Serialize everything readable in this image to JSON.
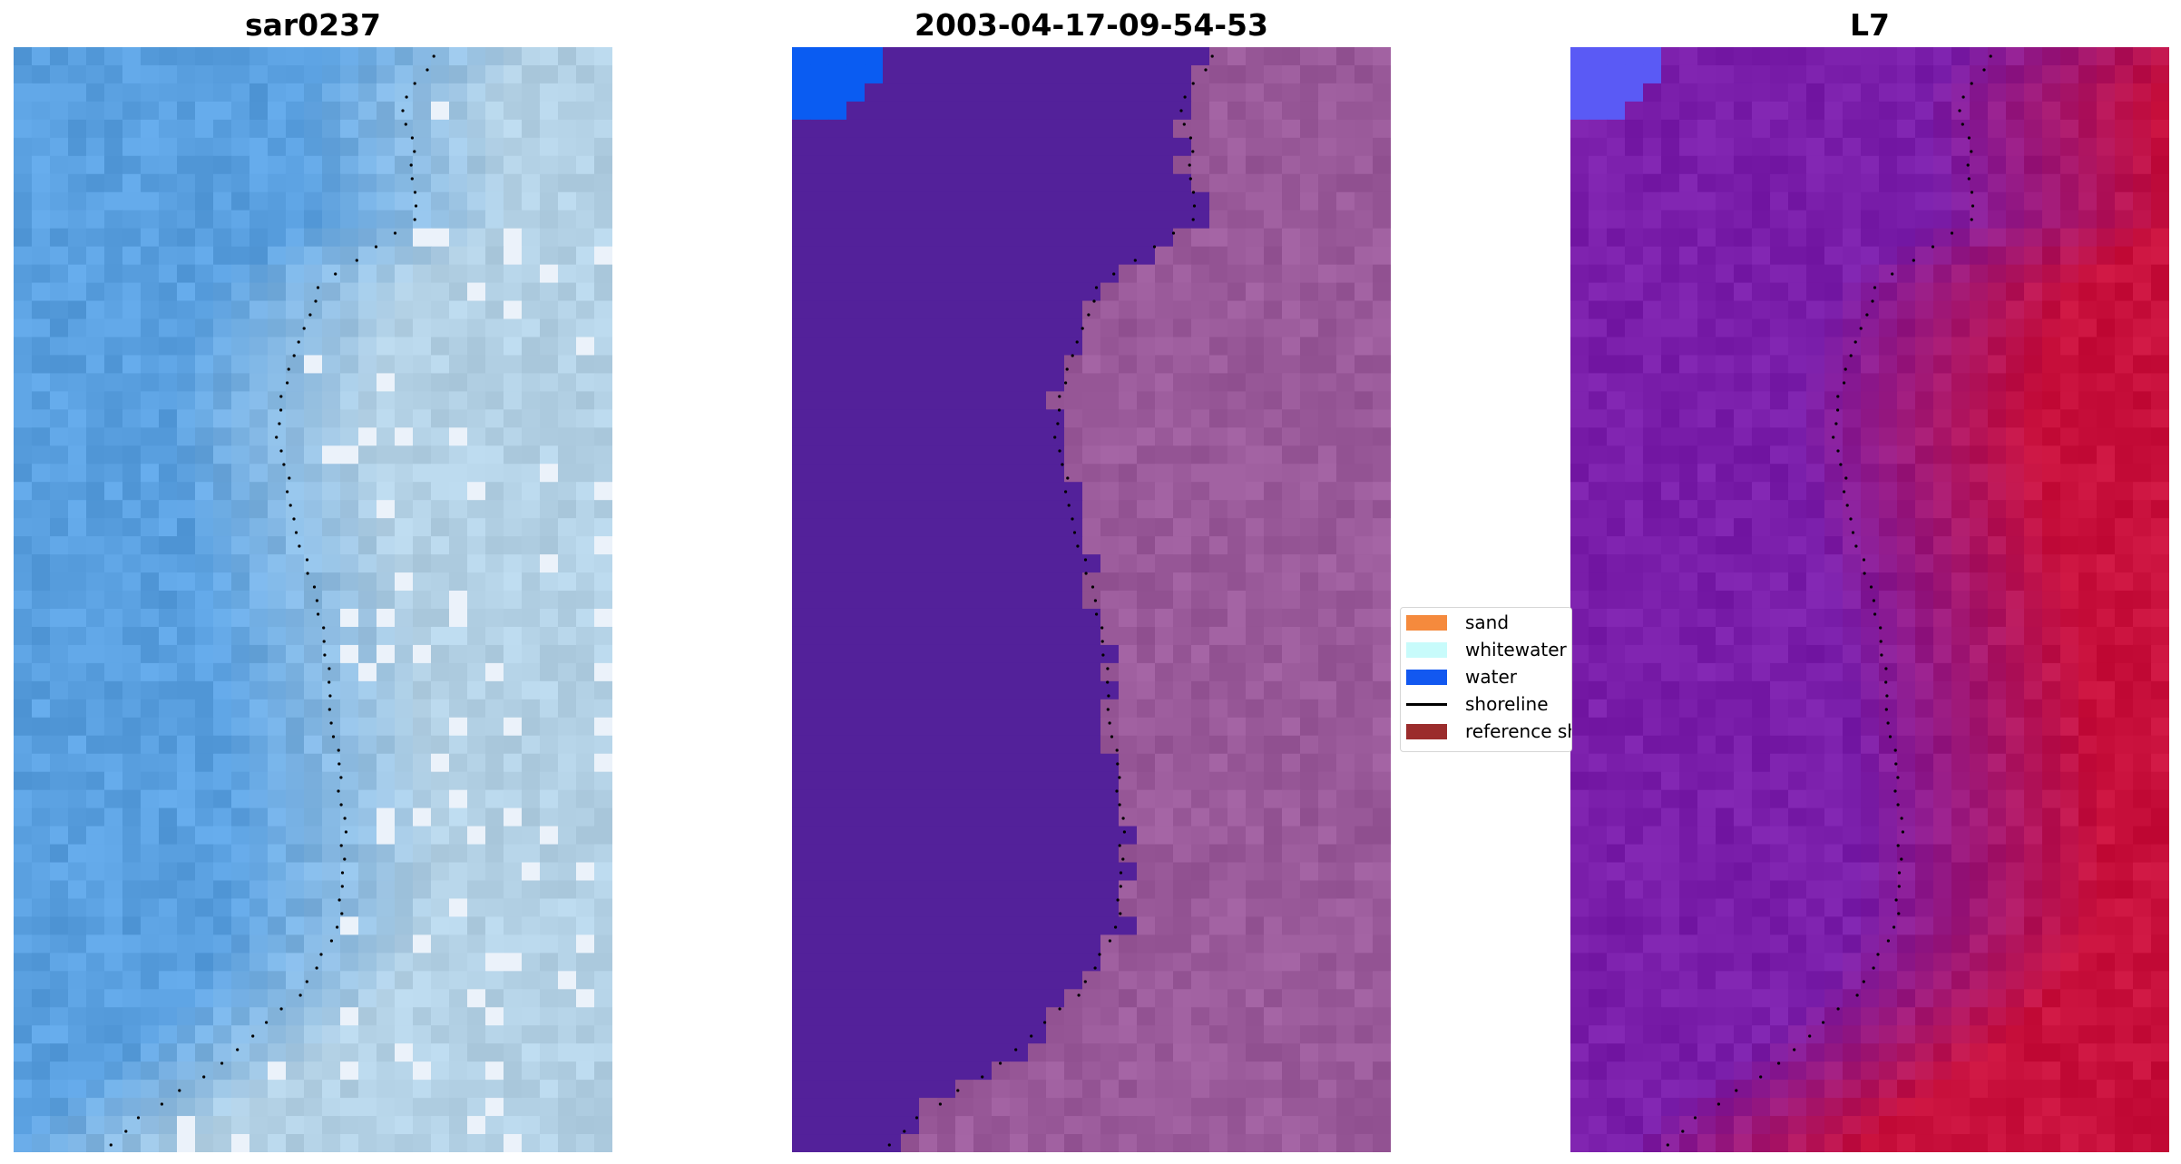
{
  "panels": [
    {
      "title": "sar0237",
      "kind": "rgb"
    },
    {
      "title": "2003-04-17-09-54-53",
      "kind": "classified"
    },
    {
      "title": "L7",
      "kind": "index"
    }
  ],
  "legend": {
    "items": [
      {
        "label": "sand",
        "color": "#f58a3d",
        "type": "patch"
      },
      {
        "label": "whitewater",
        "color": "#c8fbfb",
        "type": "patch"
      },
      {
        "label": "water",
        "color": "#1258f0",
        "type": "patch"
      },
      {
        "label": "shoreline",
        "color": "#000000",
        "type": "line"
      },
      {
        "label": "reference shoreline buffer",
        "color": "#9b2c2c",
        "type": "patch"
      }
    ]
  },
  "colors": {
    "rgb_water": "#5aa0e0",
    "rgb_land": "#b4d2e6",
    "classified_water": "#53219a",
    "classified_land": "#9a5a9a",
    "classified_water_corner": "#0a5cf2",
    "index_sea": "#7a1eaa",
    "index_land": "#c8103c"
  }
}
